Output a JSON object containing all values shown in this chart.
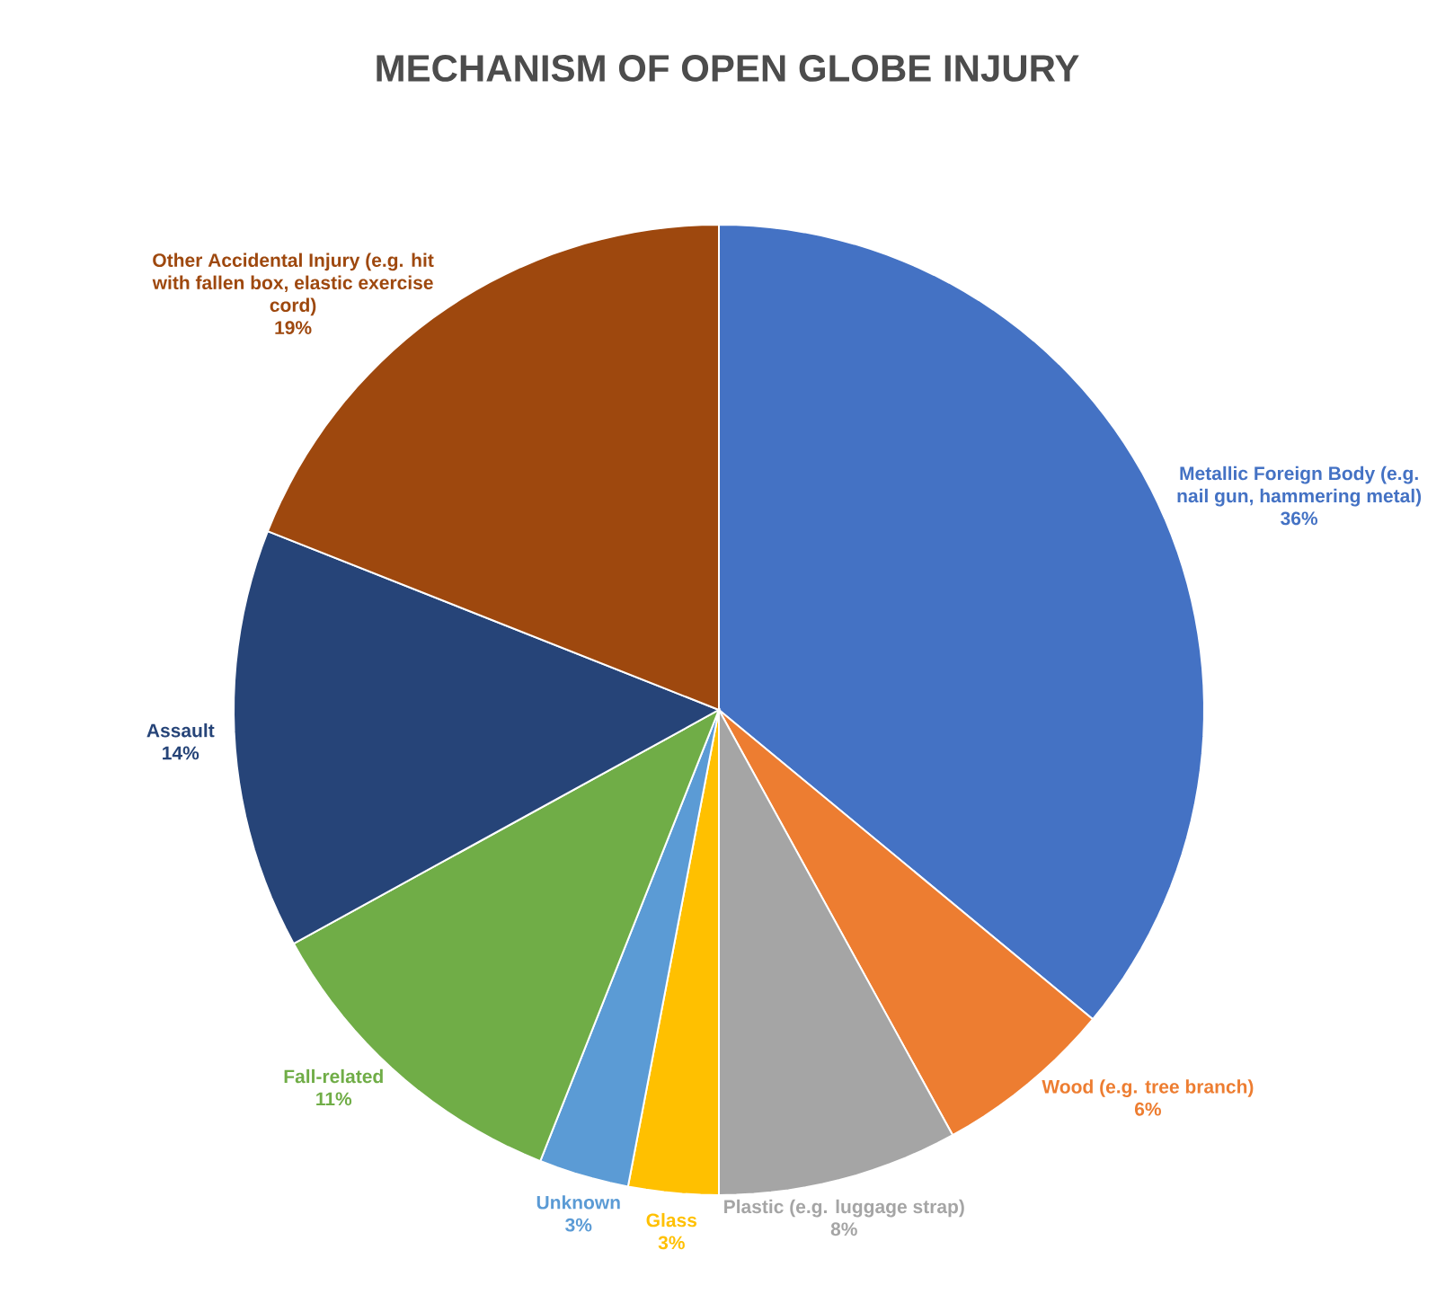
{
  "chart_data": {
    "type": "pie",
    "title": "MECHANISM OF OPEN GLOBE INJURY",
    "categories": [
      "Metallic Foreign Body (e.g. nail gun, hammering metal)",
      "Wood (e.g. tree branch)",
      "Plastic (e.g. luggage strap)",
      "Glass",
      "Unknown",
      "Fall-related",
      "Assault",
      "Other Accidental Injury (e.g. hit with fallen box, elastic exercise cord)"
    ],
    "values": [
      36,
      6,
      8,
      3,
      3,
      11,
      14,
      19
    ],
    "value_labels": [
      "36%",
      "6%",
      "8%",
      "3%",
      "3%",
      "11%",
      "14%",
      "19%"
    ],
    "colors": [
      "#4472c4",
      "#ed7d31",
      "#a5a5a5",
      "#ffc000",
      "#5b9bd5",
      "#70ad47",
      "#264478",
      "#9e480e"
    ]
  }
}
